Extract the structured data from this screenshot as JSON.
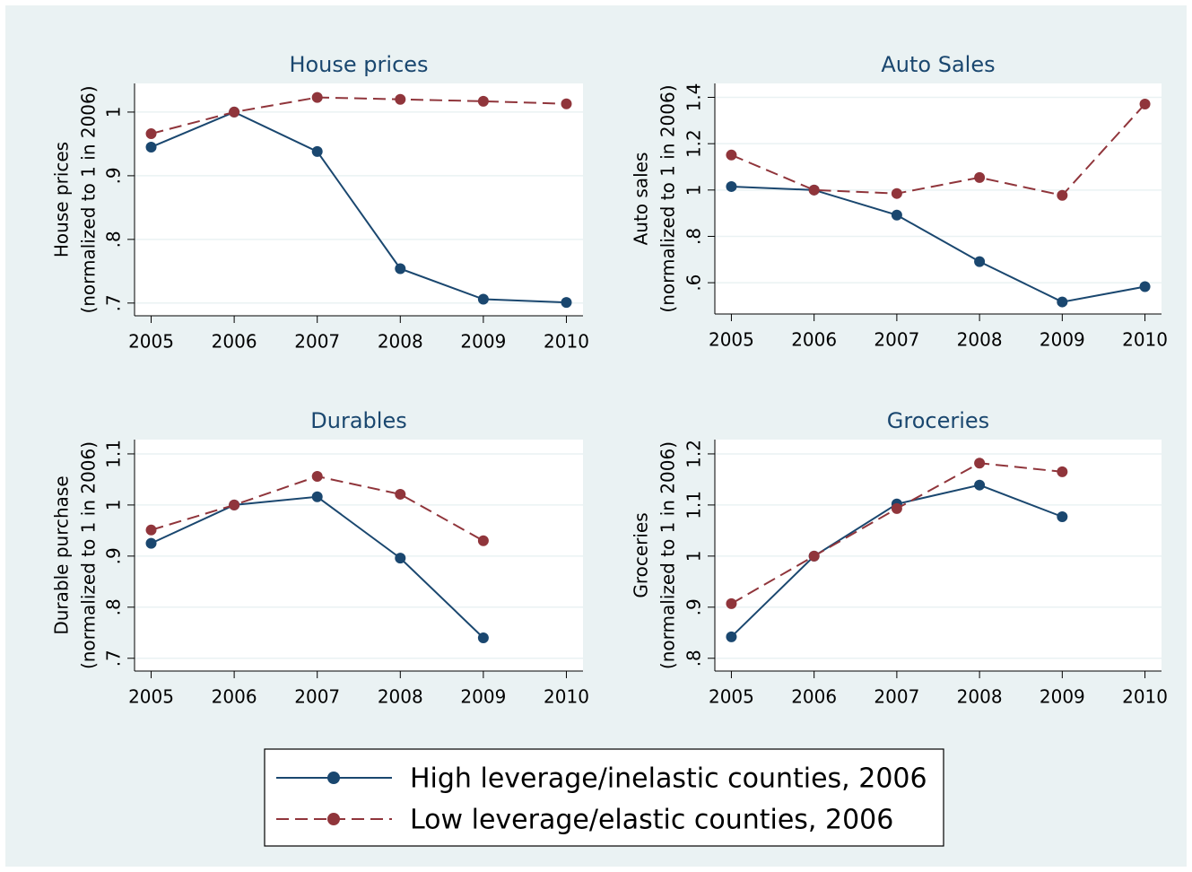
{
  "chart_data": [
    {
      "type": "line",
      "title": "House prices",
      "ylabel": [
        "House prices",
        "(normalized to 1 in 2006)"
      ],
      "x": [
        2005,
        2006,
        2007,
        2008,
        2009,
        2010
      ],
      "xlim": [
        2004.8,
        2010.2
      ],
      "xticks": [
        2005,
        2006,
        2007,
        2008,
        2009,
        2010
      ],
      "ylim": [
        0.68,
        1.045
      ],
      "yticks": [
        {
          "value": 0.7,
          "label": ".7"
        },
        {
          "value": 0.8,
          "label": ".8"
        },
        {
          "value": 0.9,
          "label": ".9"
        },
        1
      ],
      "grid": true,
      "series": [
        {
          "name": "High leverage/inelastic counties, 2006",
          "color": "#1a476f",
          "line_style": "solid",
          "values": [
            0.945,
            1,
            0.938,
            0.754,
            0.706,
            0.701
          ]
        },
        {
          "name": "Low leverage/elastic counties, 2006",
          "color": "#90353b",
          "line_style": "dashed",
          "values": [
            0.966,
            1,
            1.023,
            1.02,
            1.017,
            1.013
          ]
        }
      ]
    },
    {
      "type": "line",
      "title": "Auto Sales",
      "ylabel": [
        "Auto sales",
        "(normalized to 1 in 2006)"
      ],
      "x": [
        2005,
        2006,
        2007,
        2008,
        2009,
        2010
      ],
      "xlim": [
        2004.8,
        2010.2
      ],
      "xticks": [
        2005,
        2006,
        2007,
        2008,
        2009,
        2010
      ],
      "ylim": [
        0.465,
        1.46
      ],
      "yticks": [
        {
          "value": 0.6,
          "label": ".6"
        },
        {
          "value": 0.8,
          "label": ".8"
        },
        1,
        1.2,
        1.4
      ],
      "grid": true,
      "series": [
        {
          "color": "#1a476f",
          "line_style": "solid",
          "values": [
            1.015,
            1,
            0.892,
            0.691,
            0.517,
            0.583
          ]
        },
        {
          "color": "#90353b",
          "line_style": "dashed",
          "values": [
            1.151,
            1,
            0.985,
            1.054,
            0.977,
            1.371
          ]
        }
      ]
    },
    {
      "type": "line",
      "title": "Durables",
      "ylabel": [
        "Durable purchase",
        "(normalized to 1 in 2006)"
      ],
      "x": [
        2005,
        2006,
        2007,
        2008,
        2009,
        2010
      ],
      "xlim": [
        2004.8,
        2010.2
      ],
      "xticks": [
        2005,
        2006,
        2007,
        2008,
        2009,
        2010
      ],
      "ylim": [
        0.675,
        1.128
      ],
      "yticks": [
        {
          "value": 0.7,
          "label": ".7"
        },
        {
          "value": 0.8,
          "label": ".8"
        },
        {
          "value": 0.9,
          "label": ".9"
        },
        1,
        1.1
      ],
      "grid": true,
      "series": [
        {
          "color": "#1a476f",
          "line_style": "solid",
          "values": [
            0.925,
            1,
            1.016,
            0.896,
            0.74,
            null
          ]
        },
        {
          "color": "#90353b",
          "line_style": "dashed",
          "values": [
            0.951,
            1,
            1.056,
            1.021,
            0.93,
            null
          ]
        }
      ]
    },
    {
      "type": "line",
      "title": "Groceries",
      "ylabel": [
        "Groceries",
        "(normalized to 1 in 2006)"
      ],
      "x": [
        2005,
        2006,
        2007,
        2008,
        2009,
        2010
      ],
      "xlim": [
        2004.8,
        2010.2
      ],
      "xticks": [
        2005,
        2006,
        2007,
        2008,
        2009,
        2010
      ],
      "ylim": [
        0.775,
        1.228
      ],
      "yticks": [
        {
          "value": 0.8,
          "label": ".8"
        },
        {
          "value": 0.9,
          "label": ".9"
        },
        1,
        1.1,
        1.2
      ],
      "grid": true,
      "series": [
        {
          "color": "#1a476f",
          "line_style": "solid",
          "values": [
            0.842,
            1,
            1.102,
            1.139,
            1.077,
            null
          ]
        },
        {
          "color": "#90353b",
          "line_style": "dashed",
          "values": [
            0.907,
            1,
            1.093,
            1.182,
            1.165,
            null
          ]
        }
      ]
    }
  ]
}
